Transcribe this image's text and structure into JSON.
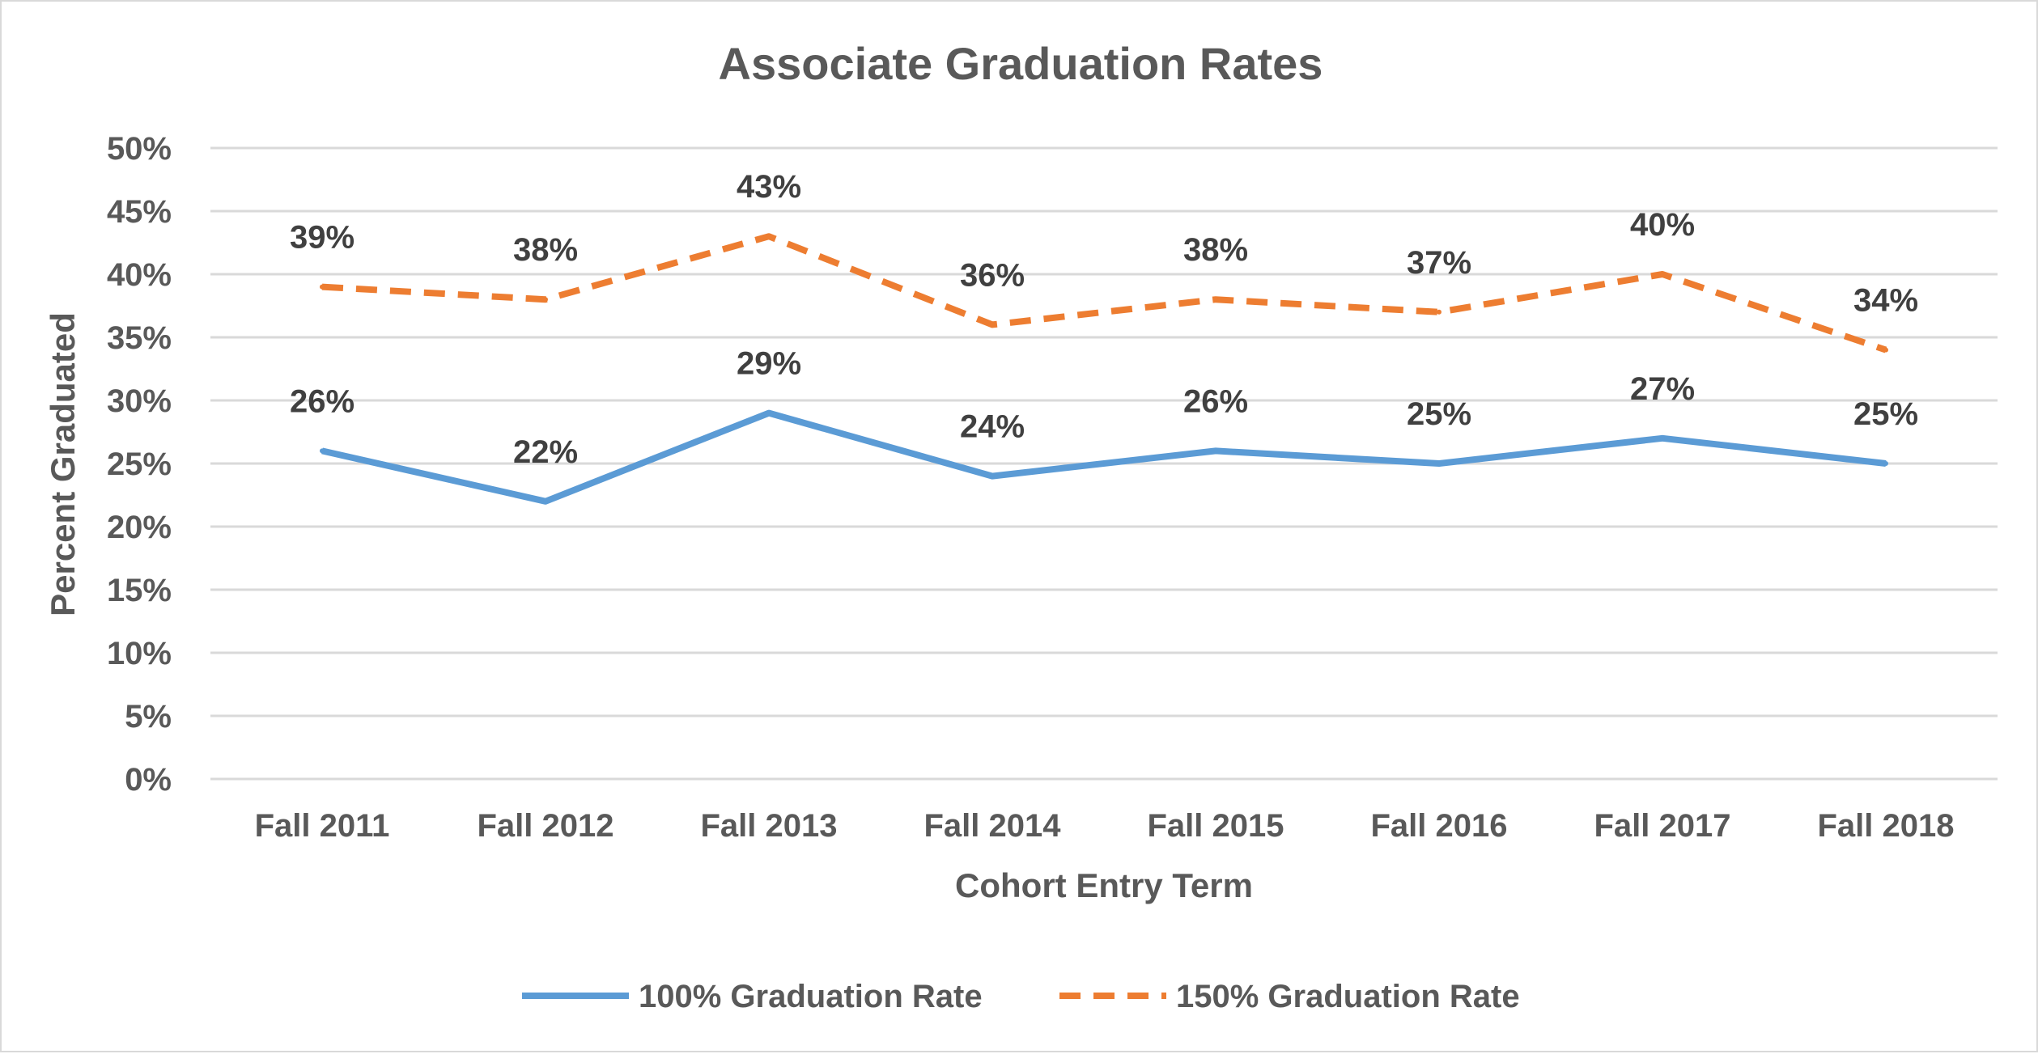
{
  "chart_data": {
    "type": "line",
    "title": "Associate Graduation Rates",
    "xlabel": "Cohort Entry Term",
    "ylabel": "Percent Graduated",
    "categories": [
      "Fall 2011",
      "Fall 2012",
      "Fall 2013",
      "Fall 2014",
      "Fall 2015",
      "Fall 2016",
      "Fall 2017",
      "Fall 2018"
    ],
    "ylim": [
      0,
      50
    ],
    "yticks": [
      0,
      5,
      10,
      15,
      20,
      25,
      30,
      35,
      40,
      45,
      50
    ],
    "ytick_labels": [
      "0%",
      "5%",
      "10%",
      "15%",
      "20%",
      "25%",
      "30%",
      "35%",
      "40%",
      "45%",
      "50%"
    ],
    "grid": true,
    "legend_position": "bottom",
    "series": [
      {
        "name": "100% Graduation Rate",
        "color": "#5b9bd5",
        "line_style": "solid",
        "values": [
          26,
          22,
          29,
          24,
          26,
          25,
          27,
          25
        ],
        "labels": [
          "26%",
          "22%",
          "29%",
          "24%",
          "26%",
          "25%",
          "27%",
          "25%"
        ]
      },
      {
        "name": "150% Graduation Rate",
        "color": "#ed7d31",
        "line_style": "dashed",
        "values": [
          39,
          38,
          43,
          36,
          38,
          37,
          40,
          34
        ],
        "labels": [
          "39%",
          "38%",
          "43%",
          "36%",
          "38%",
          "37%",
          "40%",
          "34%"
        ]
      }
    ]
  }
}
